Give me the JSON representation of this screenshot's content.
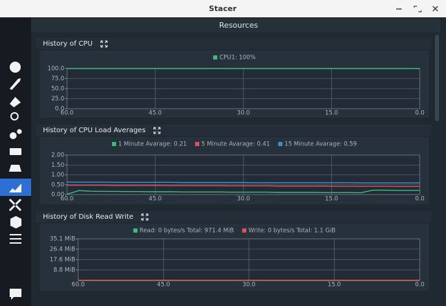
{
  "window": {
    "title": "Stacer"
  },
  "header": {
    "title": "Resources"
  },
  "charts": [
    {
      "type": "line",
      "title": "History of CPU",
      "x": [
        60,
        0
      ],
      "xlim": [
        60,
        0
      ],
      "xticks": [
        {
          "value": 60,
          "label": "60.0"
        },
        {
          "value": 45,
          "label": "45.0"
        },
        {
          "value": 30,
          "label": "30.0"
        },
        {
          "value": 15,
          "label": "15.0"
        },
        {
          "value": 0,
          "label": "0.0"
        }
      ],
      "ylim": [
        0,
        100
      ],
      "yticks": [
        {
          "value": 100,
          "label": "100.0"
        },
        {
          "value": 75,
          "label": "75.0"
        },
        {
          "value": 50,
          "label": "50.0"
        },
        {
          "value": 25,
          "label": "25.0"
        },
        {
          "value": 0,
          "label": "0.0"
        }
      ],
      "series": [
        {
          "name": "CPU1: 100%",
          "color": "#3dbd7d",
          "values": [
            100,
            100
          ]
        }
      ]
    },
    {
      "type": "line",
      "title": "History of CPU Load Averages",
      "x": [
        60,
        58,
        56,
        54,
        52,
        50,
        48,
        46,
        44,
        42,
        40,
        38,
        36,
        34,
        32,
        30,
        28,
        26,
        24,
        22,
        20,
        18,
        16,
        14,
        12,
        10,
        8,
        6,
        4,
        2,
        0
      ],
      "xlim": [
        60,
        0
      ],
      "xticks": [
        {
          "value": 60,
          "label": "60.0"
        },
        {
          "value": 45,
          "label": "45.0"
        },
        {
          "value": 30,
          "label": "30.0"
        },
        {
          "value": 15,
          "label": "15.0"
        },
        {
          "value": 0,
          "label": "0.0"
        }
      ],
      "ylim": [
        0,
        2
      ],
      "yticks": [
        {
          "value": 2,
          "label": "2.00"
        },
        {
          "value": 1.5,
          "label": "1.50"
        },
        {
          "value": 1,
          "label": "1.00"
        },
        {
          "value": 0.5,
          "label": "0.50"
        },
        {
          "value": 0,
          "label": "0.00"
        }
      ],
      "series": [
        {
          "name": "1 Minute Avarage: 0.21",
          "color": "#3dbd7d",
          "values": [
            0.02,
            0.2,
            0.17,
            0.16,
            0.16,
            0.15,
            0.15,
            0.14,
            0.14,
            0.14,
            0.13,
            0.13,
            0.13,
            0.13,
            0.12,
            0.12,
            0.12,
            0.12,
            0.11,
            0.11,
            0.11,
            0.11,
            0.1,
            0.1,
            0.1,
            0.09,
            0.22,
            0.22,
            0.21,
            0.21,
            0.21
          ]
        },
        {
          "name": "5 Minute Avarage: 0.41",
          "color": "#e0525a",
          "values": [
            0.47,
            0.47,
            0.47,
            0.47,
            0.46,
            0.46,
            0.46,
            0.46,
            0.46,
            0.45,
            0.45,
            0.45,
            0.45,
            0.45,
            0.44,
            0.44,
            0.44,
            0.44,
            0.43,
            0.43,
            0.43,
            0.43,
            0.43,
            0.42,
            0.42,
            0.42,
            0.42,
            0.42,
            0.41,
            0.41,
            0.41
          ]
        },
        {
          "name": "15 Minute Avarage: 0.59",
          "color": "#3d8fd6",
          "values": [
            0.63,
            0.63,
            0.63,
            0.63,
            0.62,
            0.62,
            0.62,
            0.62,
            0.62,
            0.62,
            0.61,
            0.61,
            0.61,
            0.61,
            0.61,
            0.61,
            0.6,
            0.6,
            0.6,
            0.6,
            0.6,
            0.6,
            0.6,
            0.6,
            0.6,
            0.59,
            0.59,
            0.59,
            0.59,
            0.59,
            0.59
          ]
        }
      ]
    },
    {
      "type": "line",
      "title": "History of Disk Read Write",
      "x": [
        60,
        0
      ],
      "xlim": [
        60,
        0
      ],
      "xticks": [
        {
          "value": 60,
          "label": "60.0"
        },
        {
          "value": 45,
          "label": "45.0"
        },
        {
          "value": 30,
          "label": "30.0"
        },
        {
          "value": 15,
          "label": "15.0"
        },
        {
          "value": 0,
          "label": "0.0"
        }
      ],
      "ylim": [
        0,
        35.1
      ],
      "yticks": [
        {
          "value": 35.1,
          "label": "35.1 MiB"
        },
        {
          "value": 26.4,
          "label": "26.4 MiB"
        },
        {
          "value": 17.6,
          "label": "17.6 MiB"
        },
        {
          "value": 8.8,
          "label": "8.8 MiB"
        }
      ],
      "series": [
        {
          "name": "Read: 0 bytes/s Total: 971.4 MiB",
          "color": "#3dbd7d",
          "values": [
            0,
            0
          ]
        },
        {
          "name": "Write: 0 bytes/s Total: 1.1 GiB",
          "color": "#e0525a",
          "values": [
            0,
            0
          ]
        }
      ]
    }
  ]
}
